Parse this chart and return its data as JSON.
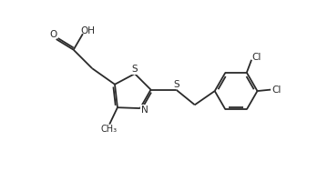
{
  "bg_color": "#ffffff",
  "line_color": "#2a2a2a",
  "lw": 1.3,
  "font_size": 7.5,
  "figsize": [
    3.6,
    1.88
  ],
  "dpi": 100,
  "xlim": [
    0,
    9.5
  ],
  "ylim": [
    0,
    4.95
  ]
}
